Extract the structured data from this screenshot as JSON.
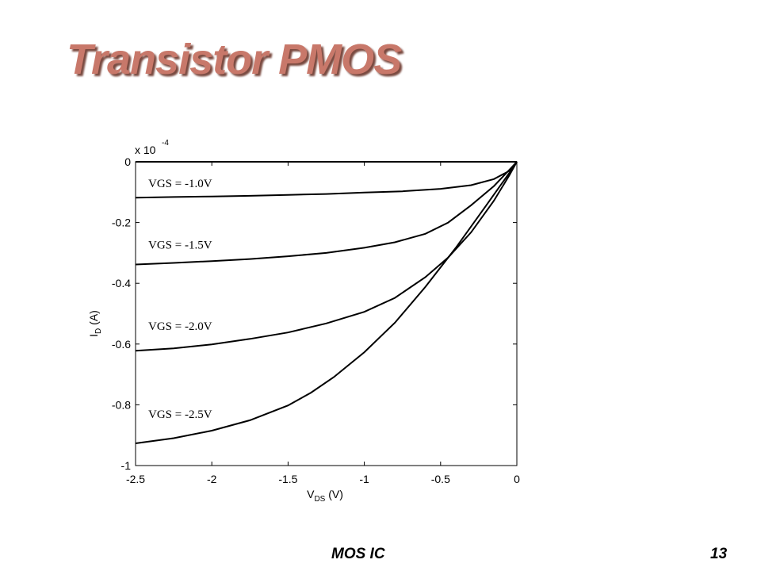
{
  "slide": {
    "title": "Transistor PMOS",
    "footer_left": "MOS IC",
    "footer_right": "13"
  },
  "chart_data": {
    "type": "line",
    "xlabel_main": "V",
    "xlabel_sub": "DS",
    "xlabel_unit": " (V)",
    "ylabel_main": "I",
    "ylabel_sub": "D",
    "ylabel_unit": " (A)",
    "y_multiplier_base": "x 10",
    "y_multiplier_exp": "-4",
    "xlim": [
      -2.5,
      0
    ],
    "ylim": [
      -1,
      0
    ],
    "xticks": [
      -2.5,
      -2,
      -1.5,
      -1,
      -0.5,
      0
    ],
    "xtick_labels": [
      "-2.5",
      "-2",
      "-1.5",
      "-1",
      "-0.5",
      "0"
    ],
    "yticks": [
      0,
      -0.2,
      -0.4,
      -0.6,
      -0.8,
      -1
    ],
    "ytick_labels": [
      "0",
      "-0.2",
      "-0.4",
      "-0.6",
      "-0.8",
      "-1"
    ],
    "grid": false,
    "series": [
      {
        "name": "VGS = -1.0V",
        "x": [
          -2.5,
          -2.25,
          -2.0,
          -1.75,
          -1.5,
          -1.25,
          -1.0,
          -0.75,
          -0.5,
          -0.3,
          -0.15,
          -0.05,
          0
        ],
        "y": [
          -0.118,
          -0.116,
          -0.114,
          -0.112,
          -0.109,
          -0.106,
          -0.101,
          -0.097,
          -0.089,
          -0.077,
          -0.057,
          -0.03,
          0
        ]
      },
      {
        "name": "VGS = -1.5V",
        "x": [
          -2.5,
          -2.25,
          -2.0,
          -1.75,
          -1.5,
          -1.25,
          -1.0,
          -0.8,
          -0.6,
          -0.45,
          -0.3,
          -0.15,
          -0.05,
          0
        ],
        "y": [
          -0.338,
          -0.333,
          -0.327,
          -0.32,
          -0.311,
          -0.3,
          -0.283,
          -0.265,
          -0.237,
          -0.2,
          -0.143,
          -0.08,
          -0.027,
          0
        ]
      },
      {
        "name": "VGS = -2.0V",
        "x": [
          -2.5,
          -2.25,
          -2.0,
          -1.75,
          -1.5,
          -1.25,
          -1.0,
          -0.8,
          -0.6,
          -0.45,
          -0.3,
          -0.15,
          -0.05,
          0
        ],
        "y": [
          -0.622,
          -0.614,
          -0.601,
          -0.583,
          -0.562,
          -0.532,
          -0.494,
          -0.448,
          -0.38,
          -0.315,
          -0.232,
          -0.128,
          -0.045,
          0
        ]
      },
      {
        "name": "VGS = -2.5V",
        "x": [
          -2.5,
          -2.25,
          -2.0,
          -1.75,
          -1.5,
          -1.35,
          -1.2,
          -1.0,
          -0.8,
          -0.6,
          -0.4,
          -0.2,
          -0.05,
          0
        ],
        "y": [
          -0.927,
          -0.91,
          -0.885,
          -0.851,
          -0.802,
          -0.76,
          -0.709,
          -0.627,
          -0.53,
          -0.412,
          -0.283,
          -0.143,
          -0.037,
          0
        ]
      }
    ],
    "annotations": [
      "VGS = -1.0V",
      "VGS = -1.5V",
      "VGS = -2.0V",
      "VGS = -2.5V"
    ]
  }
}
